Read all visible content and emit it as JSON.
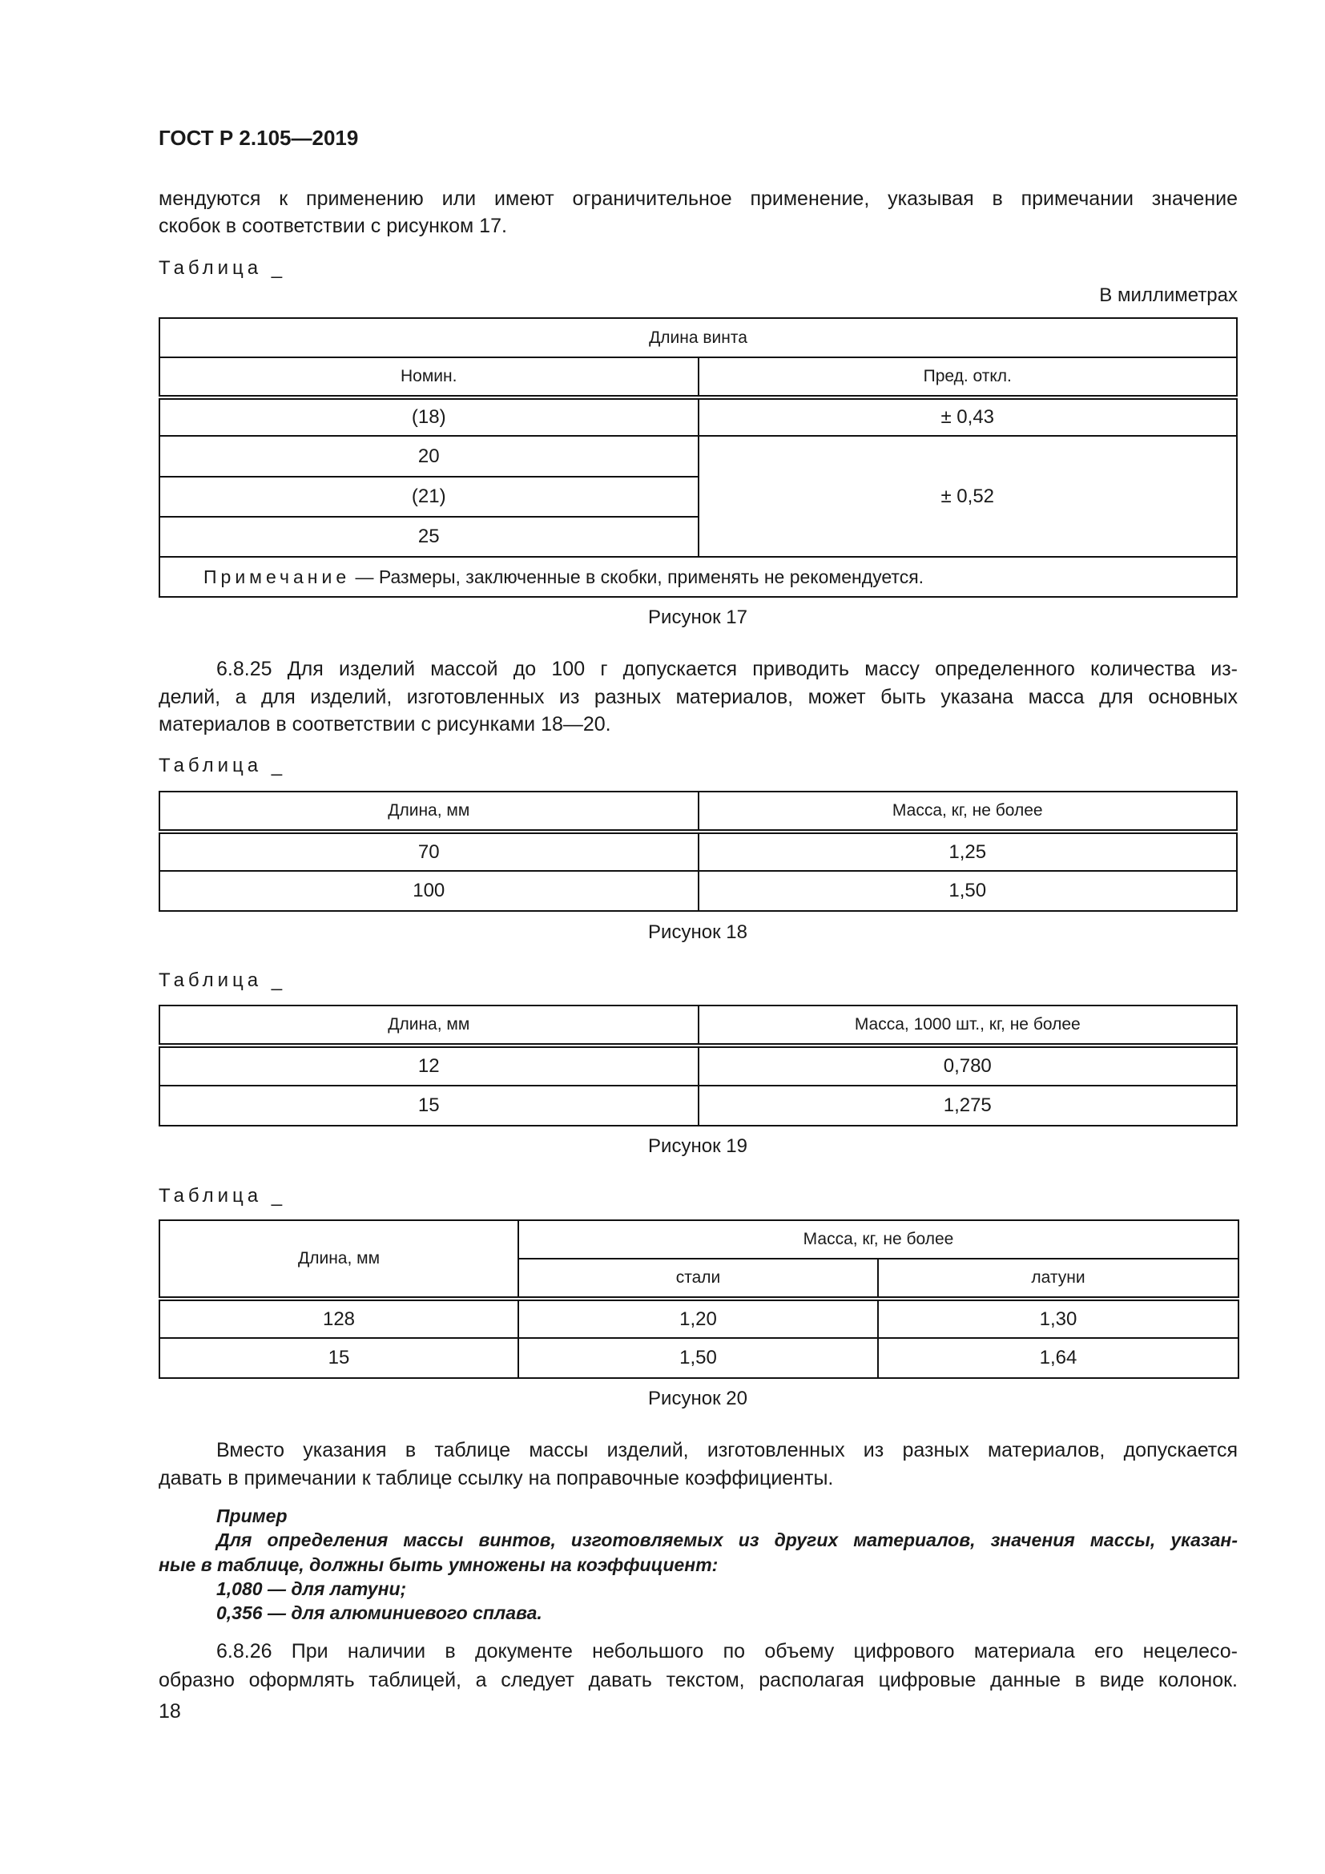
{
  "header": {
    "title": "ГОСТ Р 2.105—2019"
  },
  "intro_lines": [
    "мендуются к применению или имеют ограничительное применение, указывая в примечании значение",
    "скобок в соответствии с рисунком 17."
  ],
  "table_label": "Таблица _",
  "units_note": "В миллиметрах",
  "table17": {
    "group_header": "Длина винта",
    "col1": "Номин.",
    "col2": "Пред. откл.",
    "rows": [
      "(18)",
      "20",
      "(21)",
      "25"
    ],
    "tol1": "± 0,43",
    "tol2": "± 0,52",
    "note_label": "Примечание",
    "note_text": " — Размеры, заключенные в скобки, применять не рекомендуется.",
    "caption": "Рисунок 17"
  },
  "para_6825": [
    "6.8.25 Для изделий массой до 100 г допускается приводить массу определенного количества из-",
    "делий, а для изделий, изготовленных из разных материалов, может быть указана масса для основных",
    "материалов в соответствии с рисунками 18—20."
  ],
  "table18": {
    "col1": "Длина, мм",
    "col2": "Масса, кг, не более",
    "rows": [
      [
        "70",
        "1,25"
      ],
      [
        "100",
        "1,50"
      ]
    ],
    "caption": "Рисунок 18"
  },
  "table19": {
    "col1": "Длина, мм",
    "col2": "Масса, 1000 шт., кг, не более",
    "rows": [
      [
        "12",
        "0,780"
      ],
      [
        "15",
        "1,275"
      ]
    ],
    "caption": "Рисунок 19"
  },
  "table20": {
    "col1": "Длина, мм",
    "group": "Масса, кг, не более",
    "sub1": "стали",
    "sub2": "латуни",
    "rows": [
      [
        "128",
        "1,20",
        "1,30"
      ],
      [
        "15",
        "1,50",
        "1,64"
      ]
    ],
    "caption": "Рисунок 20"
  },
  "para_instead": [
    "Вместо указания в таблице массы изделий, изготовленных из разных материалов, допускается",
    "давать в примечании к таблице ссылку на поправочные коэффициенты."
  ],
  "example": {
    "title": "Пример",
    "lines": [
      "Для определения массы винтов, изготовляемых из других материалов, значения массы, указан-",
      "ные в таблице, должны быть умножены на коэффициент:",
      "1,080 — для латуни;",
      "0,356 — для алюминиевого сплава."
    ]
  },
  "para_6826": [
    "6.8.26 При наличии в документе небольшого по объему цифрового материала его нецелесо-",
    "образно оформлять таблицей, а следует давать текстом, располагая цифровые данные в виде колонок."
  ],
  "page_number": "18"
}
